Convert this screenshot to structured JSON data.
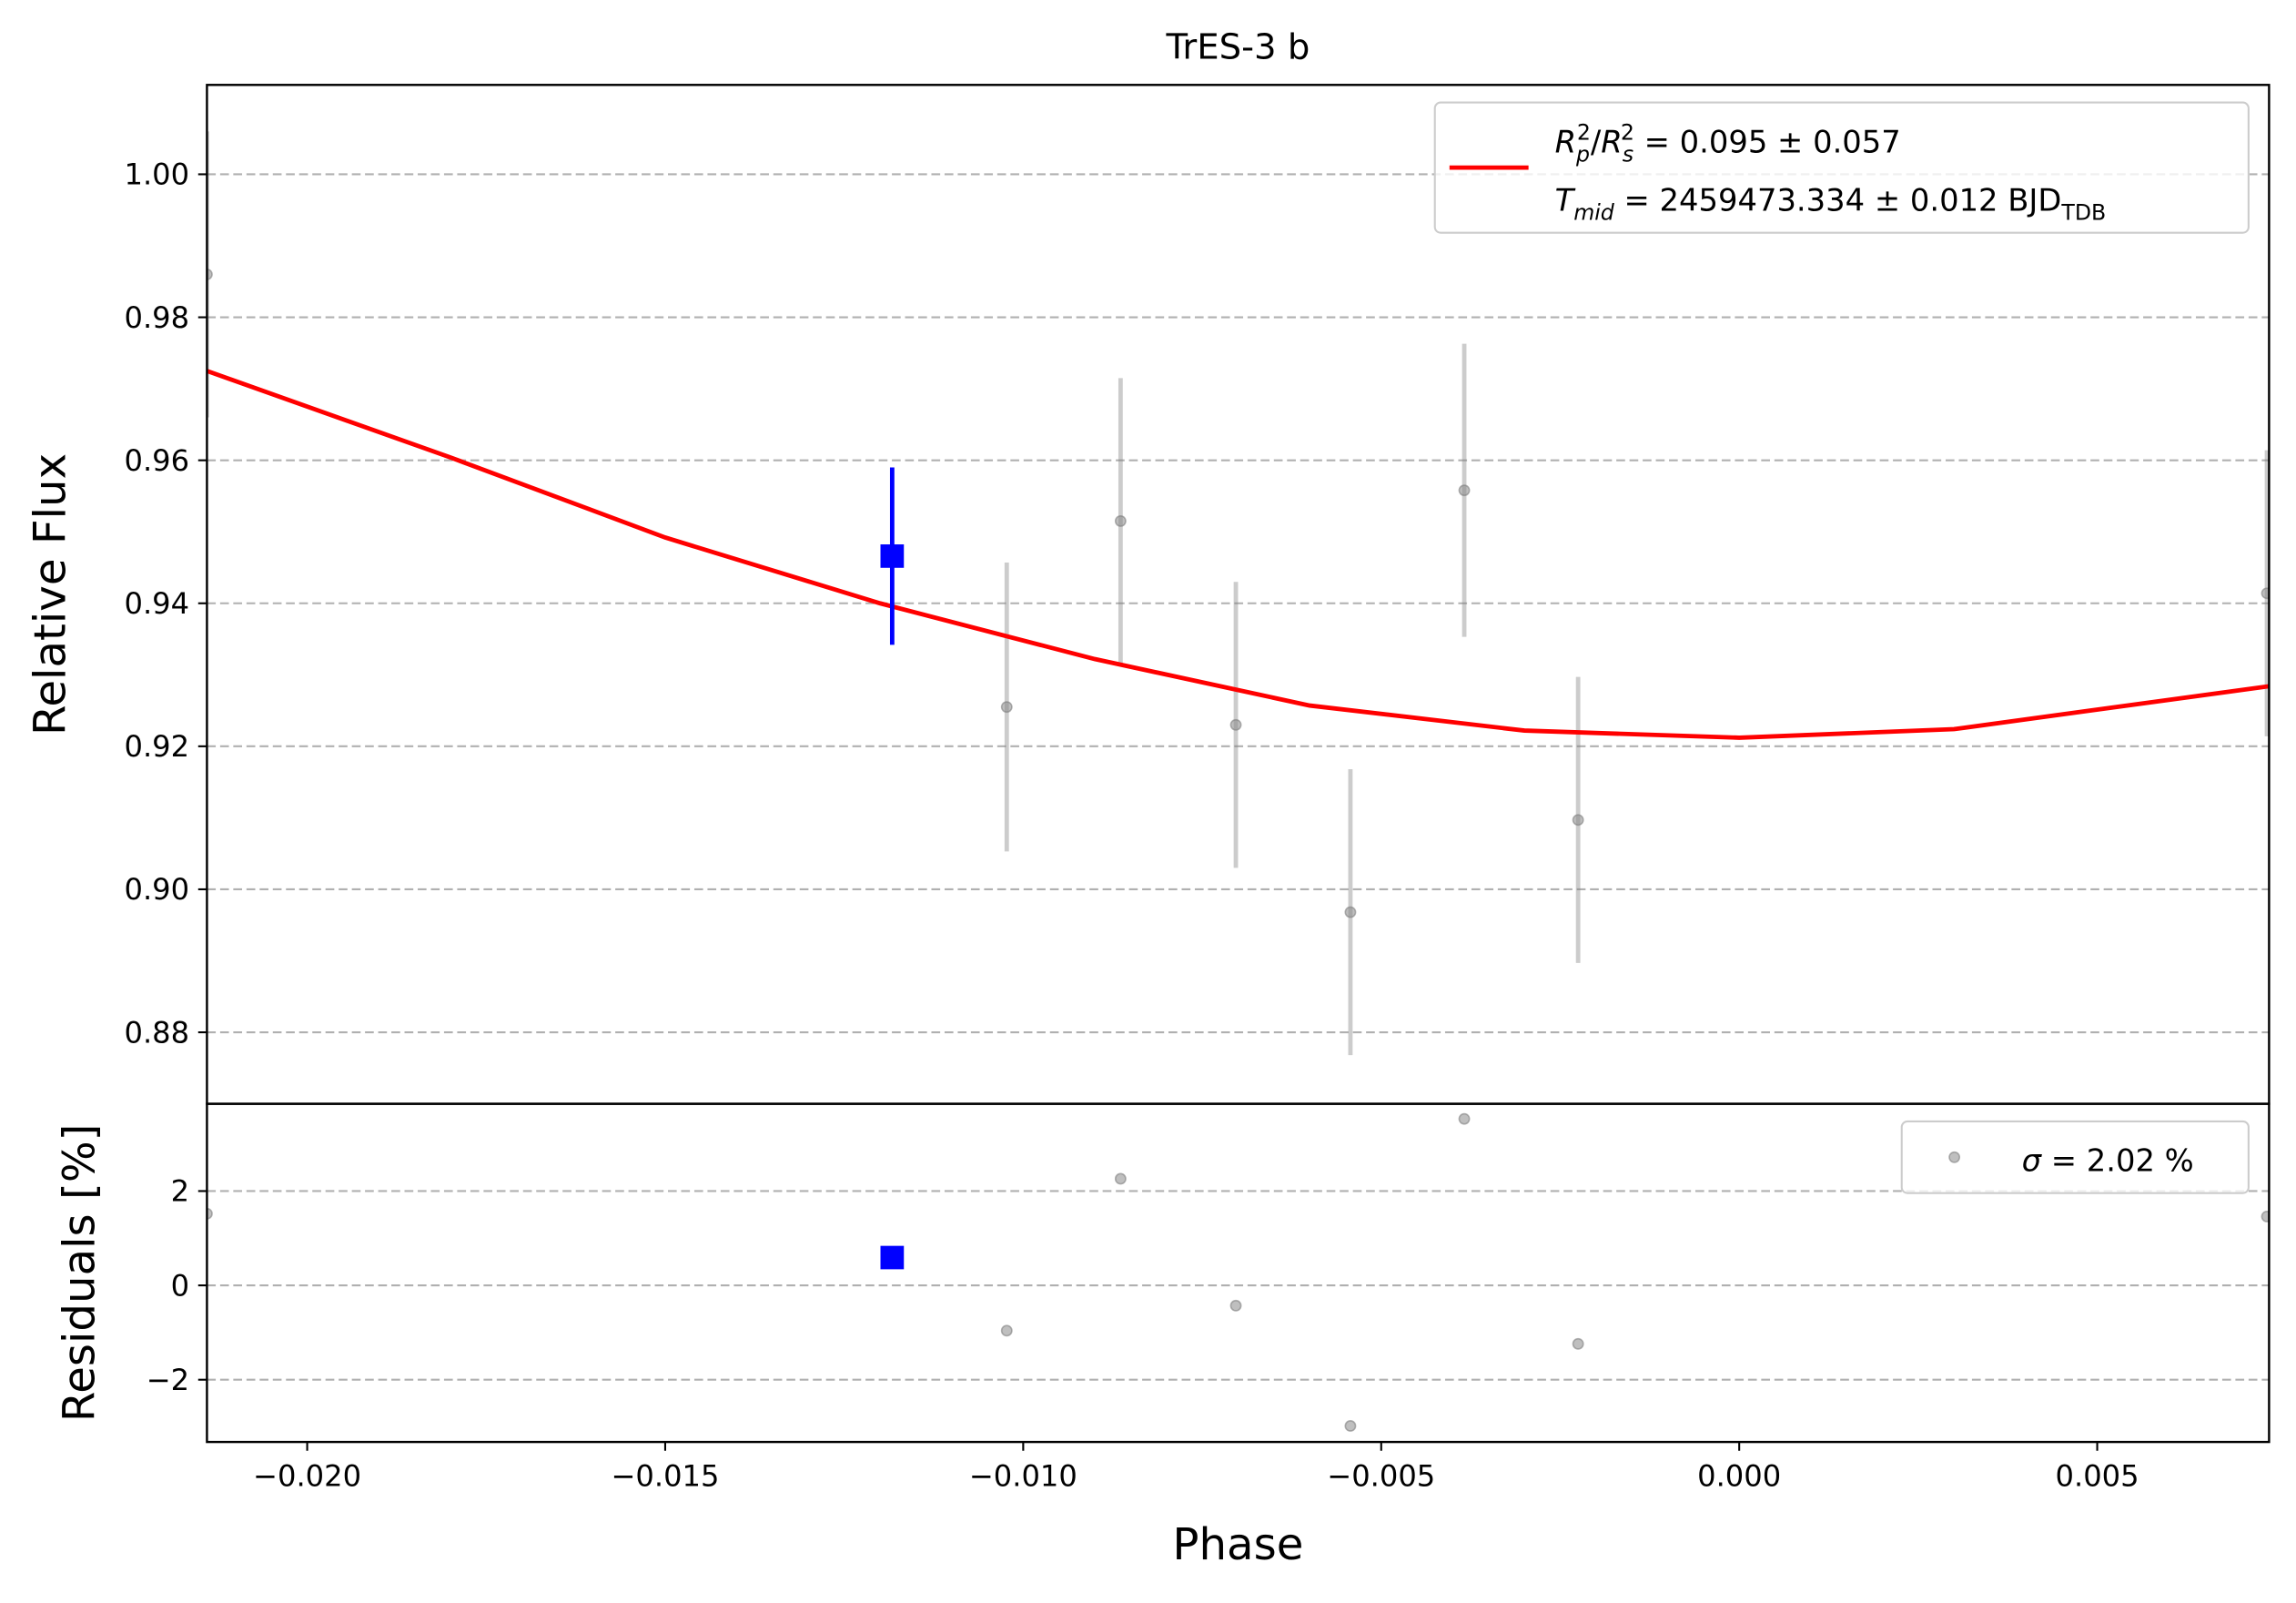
{
  "chart_data": [
    {
      "type": "scatter",
      "title": "TrES-3 b",
      "ylabel": "Relative Flux",
      "xlim": [
        -0.0214,
        0.0074
      ],
      "ylim": [
        0.87,
        1.0125
      ],
      "yticks": [
        {
          "value": 0.88,
          "label": "0.88"
        },
        {
          "value": 0.9,
          "label": "0.90"
        },
        {
          "value": 0.92,
          "label": "0.92"
        },
        {
          "value": 0.94,
          "label": "0.94"
        },
        {
          "value": 0.96,
          "label": "0.96"
        },
        {
          "value": 0.98,
          "label": "0.98"
        },
        {
          "value": 1.0,
          "label": "1.00"
        }
      ],
      "grid": true,
      "legend": "upper right",
      "series": [
        {
          "kind": "points",
          "color": "#808080",
          "x": [
            -0.0214,
            -0.01023,
            -0.00864,
            -0.00703,
            -0.00543,
            -0.00384,
            -0.00225,
            0.00737
          ],
          "values": [
            0.986,
            0.9255,
            0.9515,
            0.923,
            0.8968,
            0.9558,
            0.9097,
            0.9414
          ],
          "errors": [
            0.02,
            0.0202,
            0.02,
            0.02,
            0.02,
            0.0205,
            0.02,
            0.02
          ]
        },
        {
          "kind": "line",
          "color": "#ff0000",
          "name": [
            [
              {
                "text": "R",
                "style": "italic"
              },
              {
                "text": "p",
                "style": "sub"
              },
              {
                "text": "2",
                "style": "sup"
              },
              {
                "text": "/",
                "style": "normal"
              },
              {
                "text": "R",
                "style": "italic"
              },
              {
                "text": "s",
                "style": "sub"
              },
              {
                "text": "2",
                "style": "sup"
              },
              {
                "text": " = 0.095 ± 0.057",
                "style": "normal"
              }
            ],
            [
              {
                "text": "T",
                "style": "italic"
              },
              {
                "text": "mid",
                "style": "sub"
              },
              {
                "text": " = 2459473.334 ± 0.012 BJD",
                "style": "normal"
              },
              {
                "text": "TDB",
                "style": "sub"
              }
            ]
          ],
          "x": [
            -0.0214,
            -0.018,
            -0.015,
            -0.012,
            -0.009,
            -0.006,
            -0.003,
            0,
            0.003,
            0.0074
          ],
          "values": [
            0.9725,
            0.9604,
            0.9492,
            0.94,
            0.9322,
            0.9257,
            0.9222,
            0.9212,
            0.9224,
            0.9284
          ]
        },
        {
          "kind": "binned",
          "color": "#0000ff",
          "x": [
            -0.01183
          ],
          "values": [
            0.9466
          ],
          "errors": [
            0.0124
          ]
        }
      ]
    },
    {
      "type": "scatter",
      "xlabel": "Phase",
      "ylabel": "Residuals [%]",
      "xlim": [
        -0.0214,
        0.0074
      ],
      "ylim": [
        -3.32,
        3.85
      ],
      "xticks": [
        {
          "value": -0.02,
          "label": "−0.020"
        },
        {
          "value": -0.015,
          "label": "−0.015"
        },
        {
          "value": -0.01,
          "label": "−0.010"
        },
        {
          "value": -0.005,
          "label": "−0.005"
        },
        {
          "value": 0,
          "label": "0.000"
        },
        {
          "value": 0.005,
          "label": "0.005"
        }
      ],
      "yticks": [
        {
          "value": -2,
          "label": "−2"
        },
        0,
        2
      ],
      "grid": true,
      "legend": "upper right",
      "series": [
        {
          "kind": "points",
          "color": "#808080",
          "name": [
            [
              {
                "text": "σ",
                "style": "italic"
              },
              {
                "text": " = 2.02 %",
                "style": "normal"
              }
            ]
          ],
          "x": [
            -0.0214,
            -0.01023,
            -0.00864,
            -0.00703,
            -0.00543,
            -0.00384,
            -0.00225,
            0.00737
          ],
          "values": [
            1.52,
            -0.96,
            2.26,
            -0.43,
            -2.98,
            3.53,
            -1.24,
            1.46
          ]
        },
        {
          "kind": "binned",
          "color": "#0000ff",
          "x": [
            -0.01183
          ],
          "values": [
            0.59
          ]
        }
      ]
    }
  ]
}
